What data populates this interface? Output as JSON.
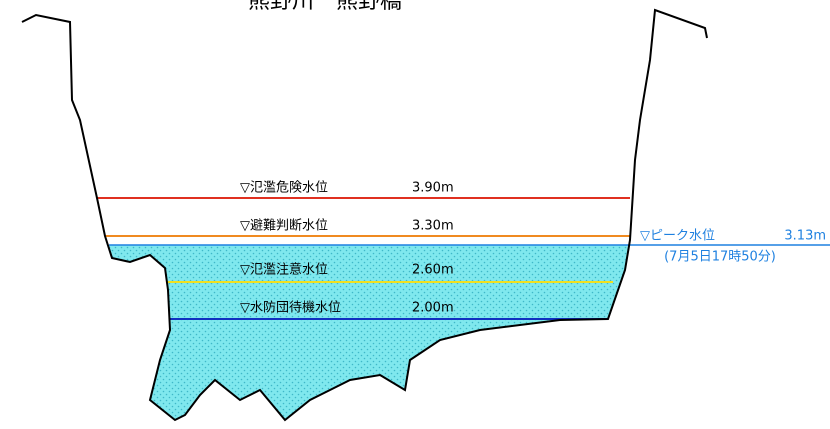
{
  "title": "熊野川　熊野橋",
  "levels": [
    {
      "name": "▽氾濫危険水位",
      "value": "3.90m"
    },
    {
      "name": "▽避難判断水位",
      "value": "3.30m"
    },
    {
      "name": "▽氾濫注意水位",
      "value": "2.60m"
    },
    {
      "name": "▽水防団待機水位",
      "value": "2.00m"
    }
  ],
  "peak": {
    "name": "▽ピーク水位",
    "value": "3.13m",
    "time": "(7月5日17時50分)"
  }
}
